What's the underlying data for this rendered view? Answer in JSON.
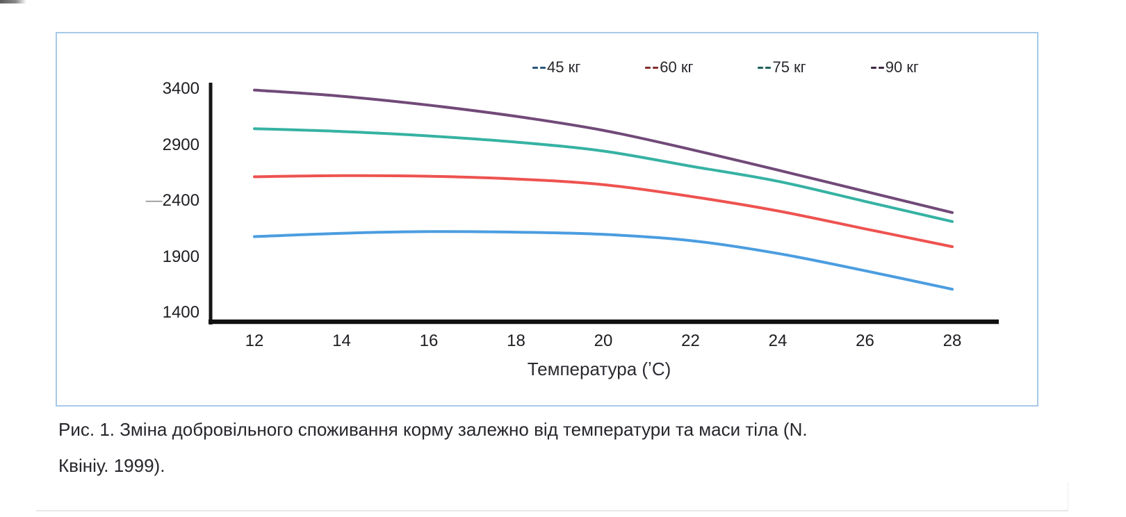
{
  "figure": {
    "panel_border_color": "#a6c9e8",
    "y_axis": {
      "ticks": [
        {
          "prefix": "",
          "label": "3400"
        },
        {
          "prefix": "",
          "label": "2900"
        },
        {
          "prefix": "—",
          "label": "2400"
        },
        {
          "prefix": "",
          "label": "1900"
        },
        {
          "prefix": "",
          "label": "1400"
        }
      ]
    },
    "x_axis": {
      "title": "Температура (ʼC)",
      "ticks": [
        "12",
        "14",
        "16",
        "18",
        "20",
        "22",
        "24",
        "26",
        "28"
      ]
    }
  },
  "chart_data": {
    "type": "line",
    "x": [
      12,
      14,
      16,
      18,
      20,
      22,
      24,
      26,
      28
    ],
    "xlabel": "Температура (ʼC)",
    "ylabel": "",
    "xlim": [
      12,
      29
    ],
    "ylim": [
      1400,
      3400
    ],
    "y_ticks": [
      3400,
      2900,
      2400,
      1900,
      1400
    ],
    "grid": false,
    "legend_position": "top",
    "series": [
      {
        "name": "45 кг",
        "color": "#4b9de0",
        "values": [
          2080,
          2110,
          2125,
          2120,
          2100,
          2045,
          1930,
          1775,
          1610
        ]
      },
      {
        "name": "60 кг",
        "color": "#ee5350",
        "values": [
          2615,
          2625,
          2620,
          2595,
          2545,
          2440,
          2310,
          2150,
          1990
        ]
      },
      {
        "name": "75 кг",
        "color": "#36b2a3",
        "values": [
          3045,
          3020,
          2980,
          2925,
          2845,
          2710,
          2575,
          2395,
          2215
        ]
      },
      {
        "name": "90 кг",
        "color": "#714a78",
        "values": [
          3390,
          3335,
          3255,
          3155,
          3030,
          2860,
          2675,
          2485,
          2295
        ]
      }
    ]
  },
  "caption": {
    "line1": "Рис. 1. Зміна добровільного споживання корму залежно від температури та маси тіла (N.",
    "line2": "Квініу. 1999)."
  }
}
